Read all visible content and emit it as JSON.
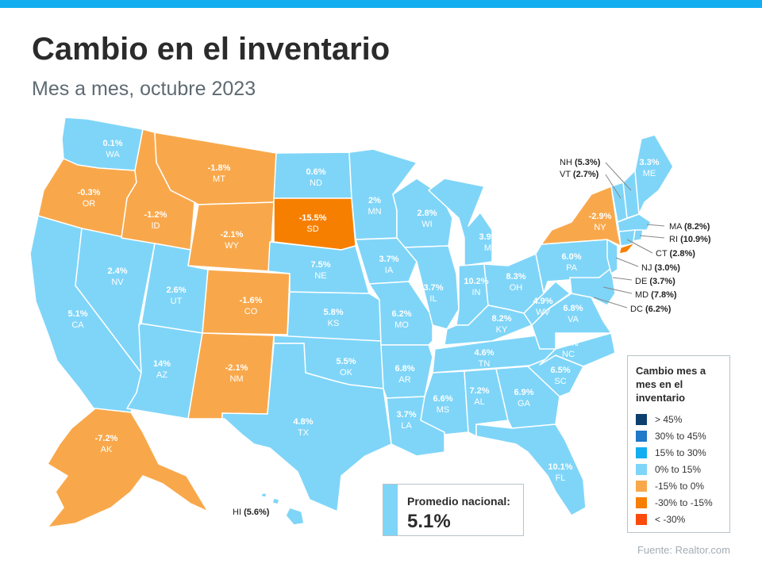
{
  "title": "Cambio en el inventario",
  "subtitle": "Mes a mes, octubre 2023",
  "colors": {
    "bar": "#12aef0",
    "light_blue": "#7fd5f8",
    "light_orange": "#f8a84b",
    "dark_orange": "#f77f00"
  },
  "states": {
    "WA": {
      "value": "0.1%",
      "code": "WA"
    },
    "OR": {
      "value": "-0.3%",
      "code": "OR"
    },
    "CA": {
      "value": "5.1%",
      "code": "CA"
    },
    "NV": {
      "value": "2.4%",
      "code": "NV"
    },
    "ID": {
      "value": "-1.2%",
      "code": "ID"
    },
    "MT": {
      "value": "-1.8%",
      "code": "MT"
    },
    "WY": {
      "value": "-2.1%",
      "code": "WY"
    },
    "UT": {
      "value": "2.6%",
      "code": "UT"
    },
    "AZ": {
      "value": "14%",
      "code": "AZ"
    },
    "CO": {
      "value": "-1.6%",
      "code": "CO"
    },
    "NM": {
      "value": "-2.1%",
      "code": "NM"
    },
    "ND": {
      "value": "0.6%",
      "code": "ND"
    },
    "SD": {
      "value": "-15.5%",
      "code": "SD"
    },
    "NE": {
      "value": "7.5%",
      "code": "NE"
    },
    "KS": {
      "value": "5.8%",
      "code": "KS"
    },
    "OK": {
      "value": "5.5%",
      "code": "OK"
    },
    "TX": {
      "value": "4.8%",
      "code": "TX"
    },
    "MN": {
      "value": "2%",
      "code": "MN"
    },
    "IA": {
      "value": "3.7%",
      "code": "IA"
    },
    "MO": {
      "value": "6.2%",
      "code": "MO"
    },
    "AR": {
      "value": "6.8%",
      "code": "AR"
    },
    "LA": {
      "value": "3.7%",
      "code": "LA"
    },
    "WI": {
      "value": "2.8%",
      "code": "WI"
    },
    "IL": {
      "value": "3.7%",
      "code": "IL"
    },
    "MI": {
      "value": "3.9%",
      "code": "MI"
    },
    "IN": {
      "value": "10.2%",
      "code": "IN"
    },
    "OH": {
      "value": "8.3%",
      "code": "OH"
    },
    "KY": {
      "value": "8.2%",
      "code": "KY"
    },
    "TN": {
      "value": "4.6%",
      "code": "TN"
    },
    "MS": {
      "value": "6.6%",
      "code": "MS"
    },
    "AL": {
      "value": "7.2%",
      "code": "AL"
    },
    "GA": {
      "value": "6.9%",
      "code": "GA"
    },
    "FL": {
      "value": "10.1%",
      "code": "FL"
    },
    "SC": {
      "value": "6.5%",
      "code": "SC"
    },
    "NC": {
      "value": "8.1%",
      "code": "NC"
    },
    "VA": {
      "value": "6.8%",
      "code": "VA"
    },
    "WV": {
      "value": "4.9%",
      "code": "WV"
    },
    "PA": {
      "value": "6.0%",
      "code": "PA"
    },
    "NY": {
      "value": "-2.9%",
      "code": "NY"
    },
    "ME": {
      "value": "3.3%",
      "code": "ME"
    },
    "AK": {
      "value": "-7.2%",
      "code": "AK"
    }
  },
  "callouts": {
    "NH": {
      "code": "NH",
      "value": "(5.3%)"
    },
    "VT": {
      "code": "VT",
      "value": "(2.7%)"
    },
    "MA": {
      "code": "MA",
      "value": "(8.2%)"
    },
    "RI": {
      "code": "RI",
      "value": "(10.9%)"
    },
    "CT": {
      "code": "CT",
      "value": "(2.8%)"
    },
    "NJ": {
      "code": "NJ",
      "value": "(3.0%)"
    },
    "DE": {
      "code": "DE",
      "value": "(3.7%)"
    },
    "MD": {
      "code": "MD",
      "value": "(7.8%)"
    },
    "DC": {
      "code": "DC",
      "value": "(6.2%)"
    },
    "HI": {
      "code": "HI",
      "value": "(5.6%)"
    }
  },
  "legend": {
    "title": "Cambio mes a mes en el inventario",
    "items": [
      {
        "label": "> 45%",
        "color": "#0d3f6e"
      },
      {
        "label": "30% to 45%",
        "color": "#1f78c8"
      },
      {
        "label": "15% to 30%",
        "color": "#12aef0"
      },
      {
        "label": "0% to 15%",
        "color": "#7fd5f8"
      },
      {
        "label": "-15% to 0%",
        "color": "#f8a84b"
      },
      {
        "label": "-30% to -15%",
        "color": "#f77f00"
      },
      {
        "label": "< -30%",
        "color": "#fa4b0d"
      }
    ]
  },
  "national": {
    "label": "Promedio nacional:",
    "value": "5.1%"
  },
  "source": "Fuente:  Realtor.com"
}
